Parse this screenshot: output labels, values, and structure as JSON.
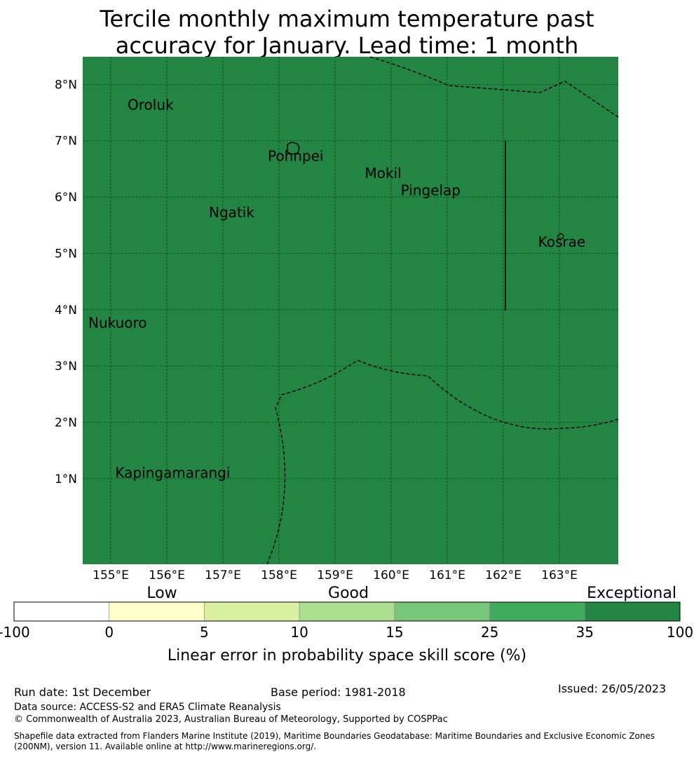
{
  "title_line1": "Tercile monthly maximum temperature past",
  "title_line2": "accuracy for January. Lead time: 1 month",
  "map": {
    "fill_color": "#238443",
    "lon_range": [
      154.5,
      164.05
    ],
    "lat_range": [
      -0.52,
      8.49
    ],
    "lon_ticks": [
      {
        "v": 155,
        "label": "155°E"
      },
      {
        "v": 156,
        "label": "156°E"
      },
      {
        "v": 157,
        "label": "157°E"
      },
      {
        "v": 158,
        "label": "158°E"
      },
      {
        "v": 159,
        "label": "159°E"
      },
      {
        "v": 160,
        "label": "160°E"
      },
      {
        "v": 161,
        "label": "161°E"
      },
      {
        "v": 162,
        "label": "162°E"
      },
      {
        "v": 163,
        "label": "163°E"
      }
    ],
    "lat_ticks": [
      {
        "v": 1,
        "label": "1°N"
      },
      {
        "v": 2,
        "label": "2°N"
      },
      {
        "v": 3,
        "label": "3°N"
      },
      {
        "v": 4,
        "label": "4°N"
      },
      {
        "v": 5,
        "label": "5°N"
      },
      {
        "v": 6,
        "label": "6°N"
      },
      {
        "v": 7,
        "label": "7°N"
      },
      {
        "v": 8,
        "label": "8°N"
      }
    ],
    "places": [
      {
        "name": "Oroluk",
        "lon": 155.3,
        "lat": 7.55
      },
      {
        "name": "Pohnpei",
        "lon": 157.8,
        "lat": 6.64
      },
      {
        "name": "Mokil",
        "lon": 159.53,
        "lat": 6.34
      },
      {
        "name": "Pingelap",
        "lon": 160.17,
        "lat": 6.03
      },
      {
        "name": "Ngatik",
        "lon": 156.75,
        "lat": 5.64
      },
      {
        "name": "Kosrae",
        "lon": 162.62,
        "lat": 5.12
      },
      {
        "name": "Nukuoro",
        "lon": 154.6,
        "lat": 3.68
      },
      {
        "name": "Kapingamarangi",
        "lon": 155.08,
        "lat": 1.02
      }
    ]
  },
  "colorbar": {
    "category_labels": [
      "Low",
      "Good",
      "Exceptional"
    ],
    "bins": [
      {
        "from": "-100",
        "to": "0",
        "color": "#ffffff"
      },
      {
        "from": "0",
        "to": "5",
        "color": "#ffffcc"
      },
      {
        "from": "5",
        "to": "10",
        "color": "#d9f0a3"
      },
      {
        "from": "10",
        "to": "15",
        "color": "#addd8e"
      },
      {
        "from": "15",
        "to": "25",
        "color": "#78c679"
      },
      {
        "from": "25",
        "to": "35",
        "color": "#41ab5d"
      },
      {
        "from": "35",
        "to": "100",
        "color": "#238443"
      }
    ],
    "tick_labels": [
      "-100",
      "0",
      "5",
      "10",
      "15",
      "25",
      "35",
      "100"
    ],
    "axis_label": "Linear error in probability space skill score (%)"
  },
  "footer": {
    "run_date": "Run date: 1st December",
    "base_period": "Base period: 1981-2018",
    "issued": "Issued: 26/05/2023",
    "data_source": "Data source: ACCESS-S2 and ERA5 Climate Reanalysis",
    "copyright": "© Commonwealth of Australia 2023, Australian Bureau of Meteorology, Supported by COSPPac",
    "shapefile": "Shapefile data extracted from Flanders Marine Institute (2019), Maritime Boundaries Geodatabase: Maritime Boundaries and Exclusive Economic Zones (200NM), version 11. Available online at http://www.marineregions.org/."
  }
}
